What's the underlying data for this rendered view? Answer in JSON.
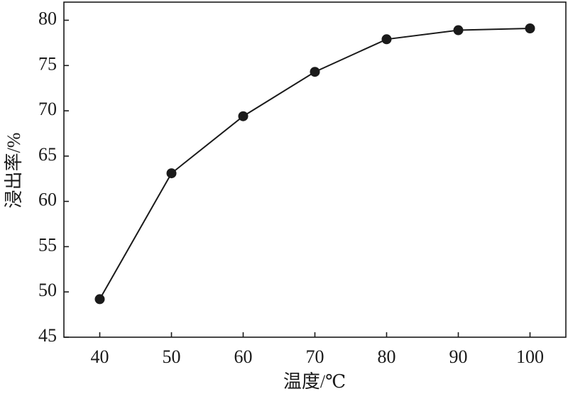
{
  "chart_data": {
    "type": "line",
    "x_label": "温度/℃",
    "y_label": "浸出率/%",
    "x": [
      40,
      50,
      60,
      70,
      80,
      90,
      100
    ],
    "series": [
      {
        "color": "#1a1a1a",
        "values": [
          49.2,
          63.1,
          69.4,
          74.3,
          77.9,
          78.9,
          79.1
        ]
      }
    ],
    "xlim": [
      35,
      105
    ],
    "ylim": [
      45,
      82
    ],
    "xticks": [
      40,
      50,
      60,
      70,
      80,
      90,
      100
    ],
    "yticks": [
      45,
      50,
      55,
      60,
      65,
      70,
      75,
      80
    ]
  }
}
